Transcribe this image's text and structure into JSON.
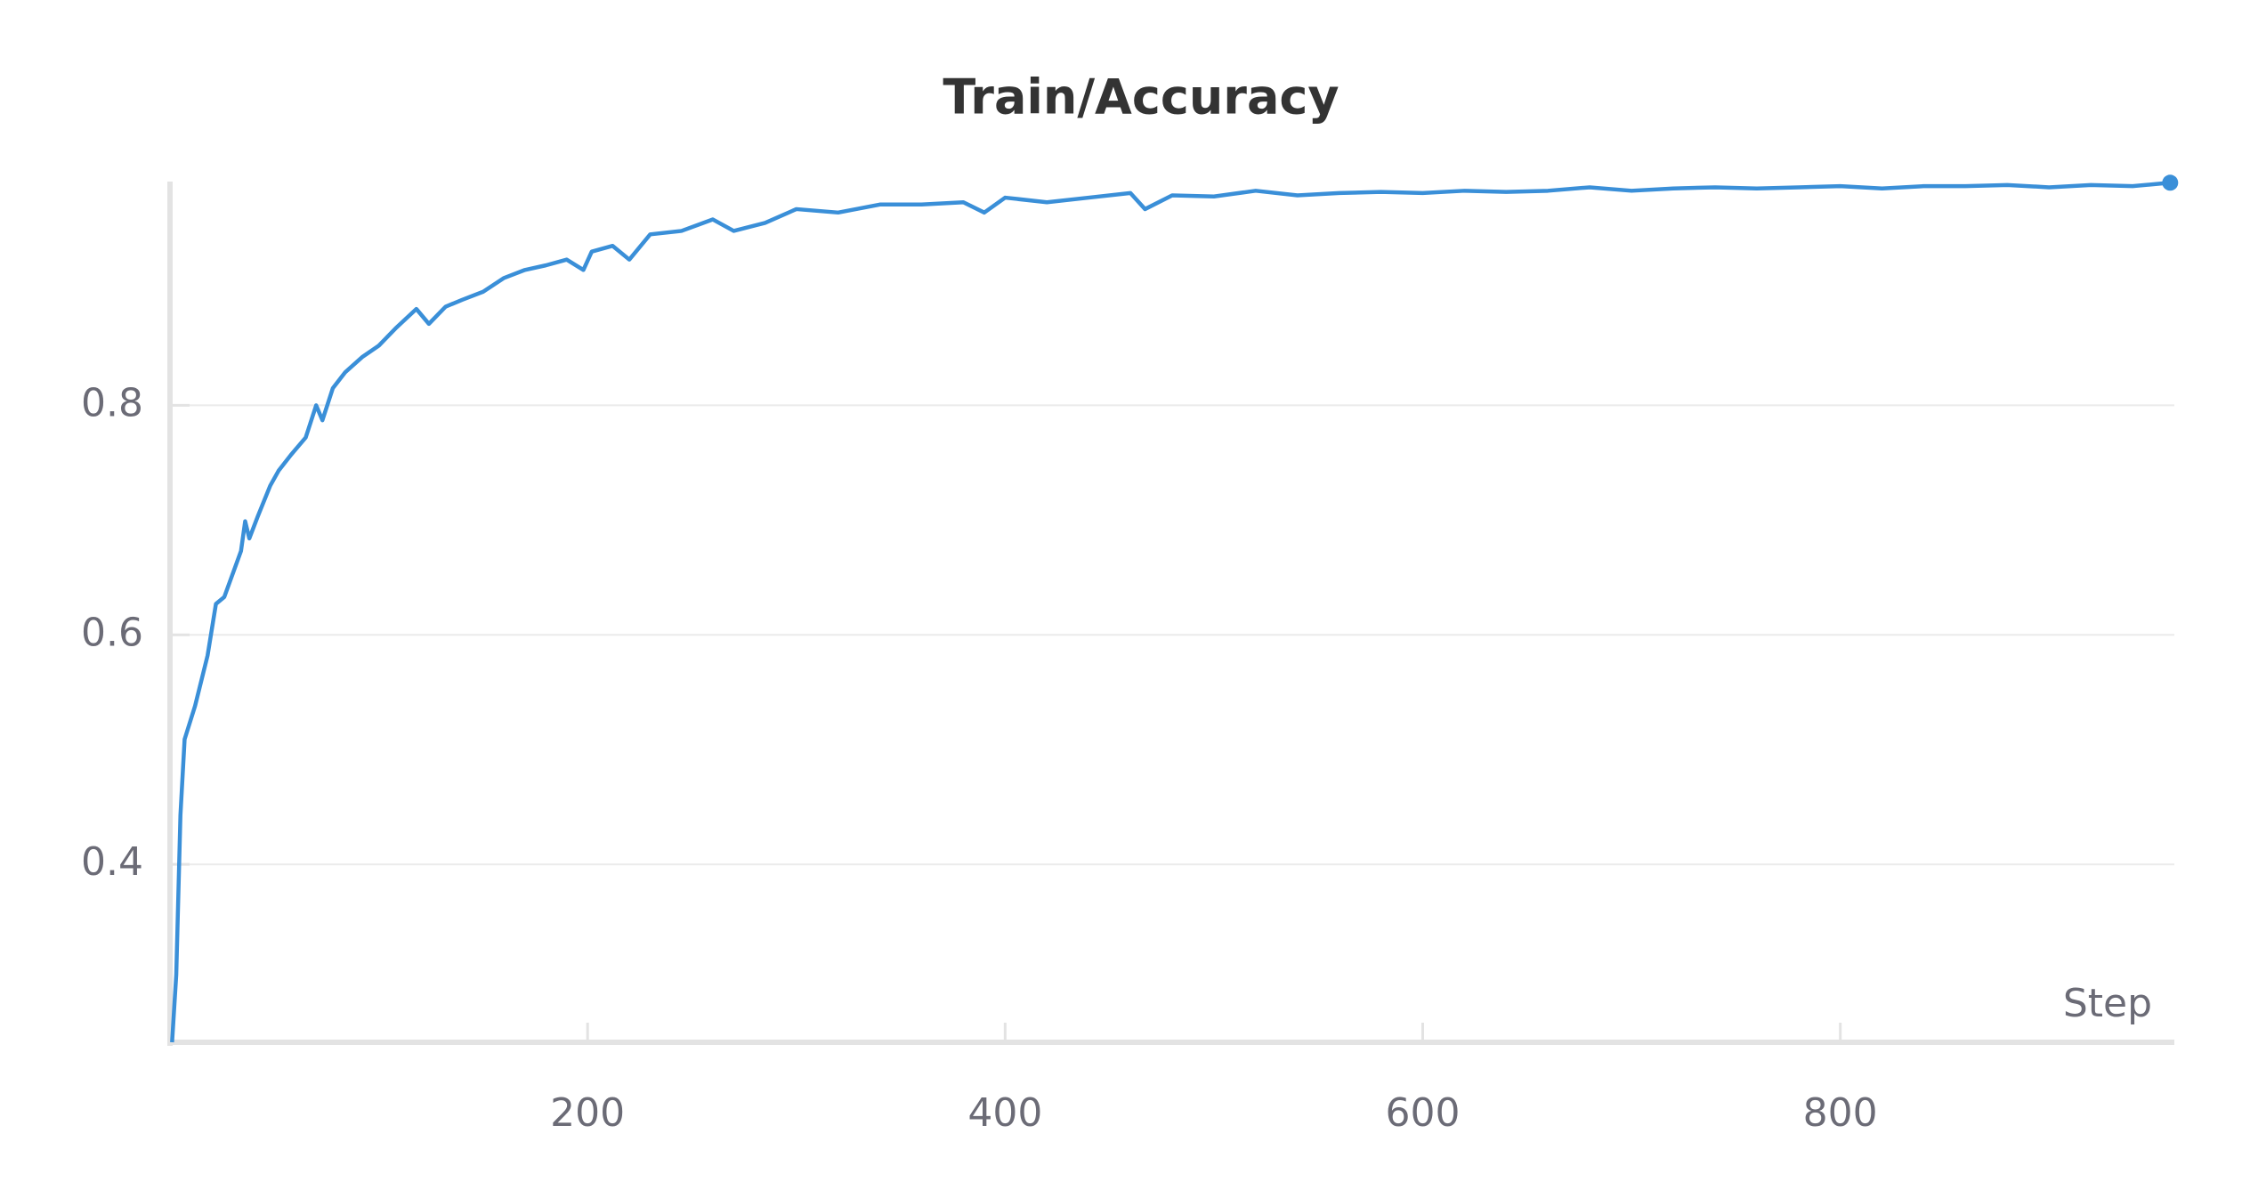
{
  "chart_data": {
    "type": "line",
    "title": "Train/Accuracy",
    "x_label": "Step",
    "x": [
      1,
      3,
      5,
      7,
      12,
      18,
      22,
      26,
      34,
      36,
      38,
      42,
      48,
      52,
      58,
      65,
      70,
      73,
      78,
      84,
      92,
      100,
      108,
      118,
      124,
      132,
      140,
      150,
      160,
      170,
      180,
      190,
      198,
      202,
      212,
      220,
      230,
      245,
      260,
      270,
      285,
      300,
      320,
      340,
      360,
      380,
      390,
      400,
      420,
      440,
      460,
      467,
      480,
      500,
      520,
      540,
      560,
      580,
      600,
      620,
      640,
      660,
      680,
      700,
      720,
      740,
      760,
      780,
      800,
      820,
      840,
      860,
      880,
      900,
      920,
      940,
      958
    ],
    "series": [
      {
        "name": "Train/Accuracy",
        "color": "#3a8fd8",
        "values": [
          0.245,
          0.304,
          0.443,
          0.509,
          0.538,
          0.582,
          0.627,
          0.633,
          0.673,
          0.699,
          0.684,
          0.703,
          0.73,
          0.743,
          0.757,
          0.772,
          0.8,
          0.787,
          0.815,
          0.829,
          0.842,
          0.852,
          0.867,
          0.884,
          0.871,
          0.886,
          0.892,
          0.899,
          0.911,
          0.918,
          0.922,
          0.927,
          0.918,
          0.934,
          0.939,
          0.927,
          0.949,
          0.952,
          0.962,
          0.952,
          0.959,
          0.971,
          0.968,
          0.975,
          0.975,
          0.977,
          0.968,
          0.981,
          0.977,
          0.981,
          0.985,
          0.971,
          0.983,
          0.982,
          0.987,
          0.983,
          0.985,
          0.986,
          0.985,
          0.987,
          0.986,
          0.987,
          0.99,
          0.987,
          0.989,
          0.99,
          0.989,
          0.99,
          0.991,
          0.989,
          0.991,
          0.991,
          0.992,
          0.99,
          0.992,
          0.991,
          0.994
        ]
      }
    ],
    "xlim": [
      0,
      960
    ],
    "xticks": [
      200,
      400,
      600,
      800
    ],
    "ylim": [
      0.245,
      0.995
    ],
    "yticks": [
      0.4,
      0.6,
      0.8
    ],
    "grid": true
  }
}
